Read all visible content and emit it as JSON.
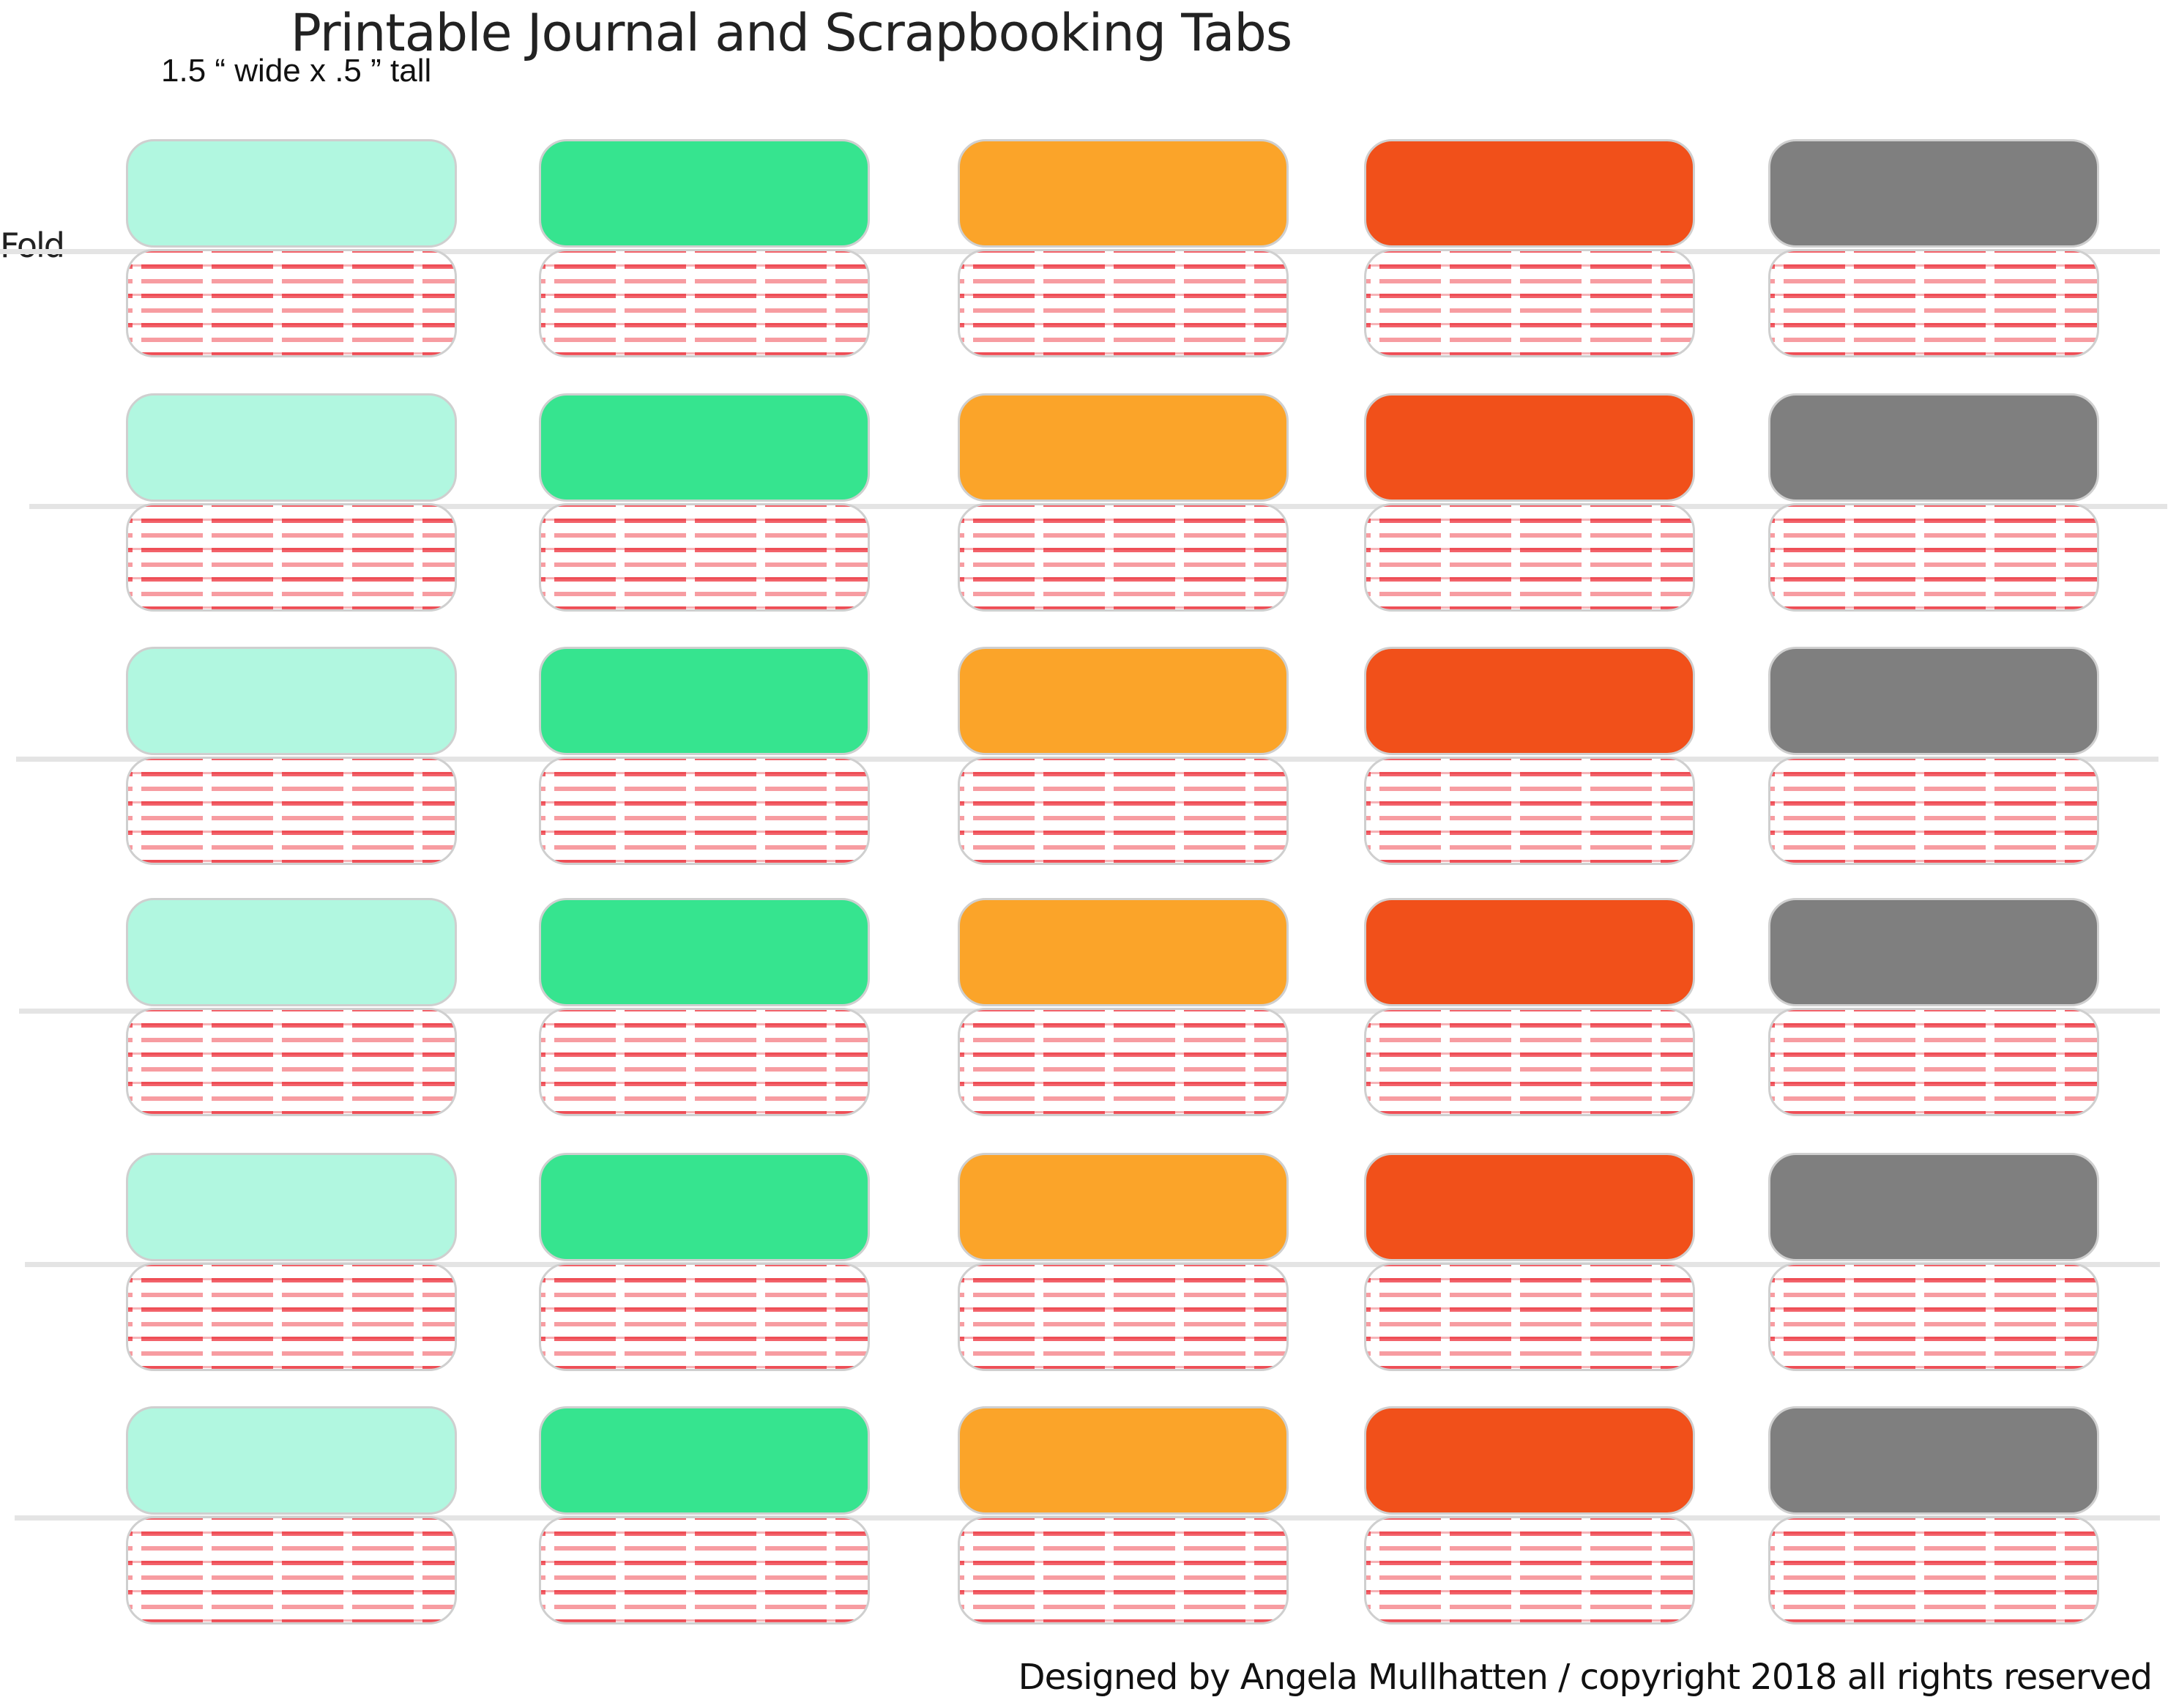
{
  "title": "Printable Journal and Scrapbooking Tabs",
  "size_note": "1.5 “ wide x .5 ” tall",
  "fold_label": "Fold",
  "footer": "Designed by Angela Mullhatten / copyright 2018 all rights reserved",
  "colors": {
    "mint": "#b1f7e0",
    "green": "#36e48f",
    "orange": "#fba429",
    "red_orange": "#f1501a",
    "gray": "#7f7f7f",
    "stripe_red": "#f2626a",
    "fold_line": "#e4e4e4"
  },
  "tab_columns": [
    "mint",
    "green",
    "orange",
    "red_orange",
    "gray"
  ],
  "tab_row_count": 6
}
